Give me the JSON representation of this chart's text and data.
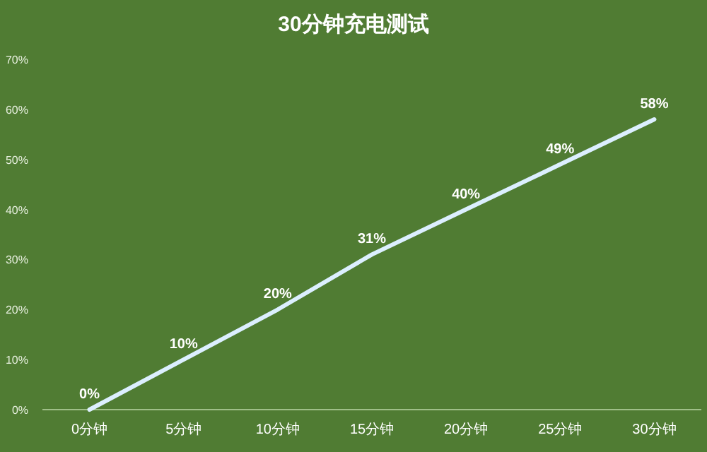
{
  "chart_data": {
    "type": "line",
    "title": "30分钟充电测试",
    "categories": [
      "0分钟",
      "5分钟",
      "10分钟",
      "15分钟",
      "20分钟",
      "25分钟",
      "30分钟"
    ],
    "series": [
      {
        "color": "#dcefff",
        "values": [
          0,
          10,
          20,
          31,
          40,
          49,
          58
        ]
      }
    ],
    "value_labels": [
      "0%",
      "10%",
      "20%",
      "31%",
      "40%",
      "49%",
      "58%"
    ],
    "ylim": [
      0,
      70
    ],
    "yticks": [
      {
        "value": 0,
        "label": "0%"
      },
      {
        "value": 10,
        "label": "10%"
      },
      {
        "value": 20,
        "label": "20%"
      },
      {
        "value": 30,
        "label": "30%"
      },
      {
        "value": 40,
        "label": "40%"
      },
      {
        "value": 50,
        "label": "50%"
      },
      {
        "value": 60,
        "label": "60%"
      },
      {
        "value": 70,
        "label": "70%"
      }
    ],
    "grid": false,
    "marker": "none",
    "line_style": "solid"
  }
}
